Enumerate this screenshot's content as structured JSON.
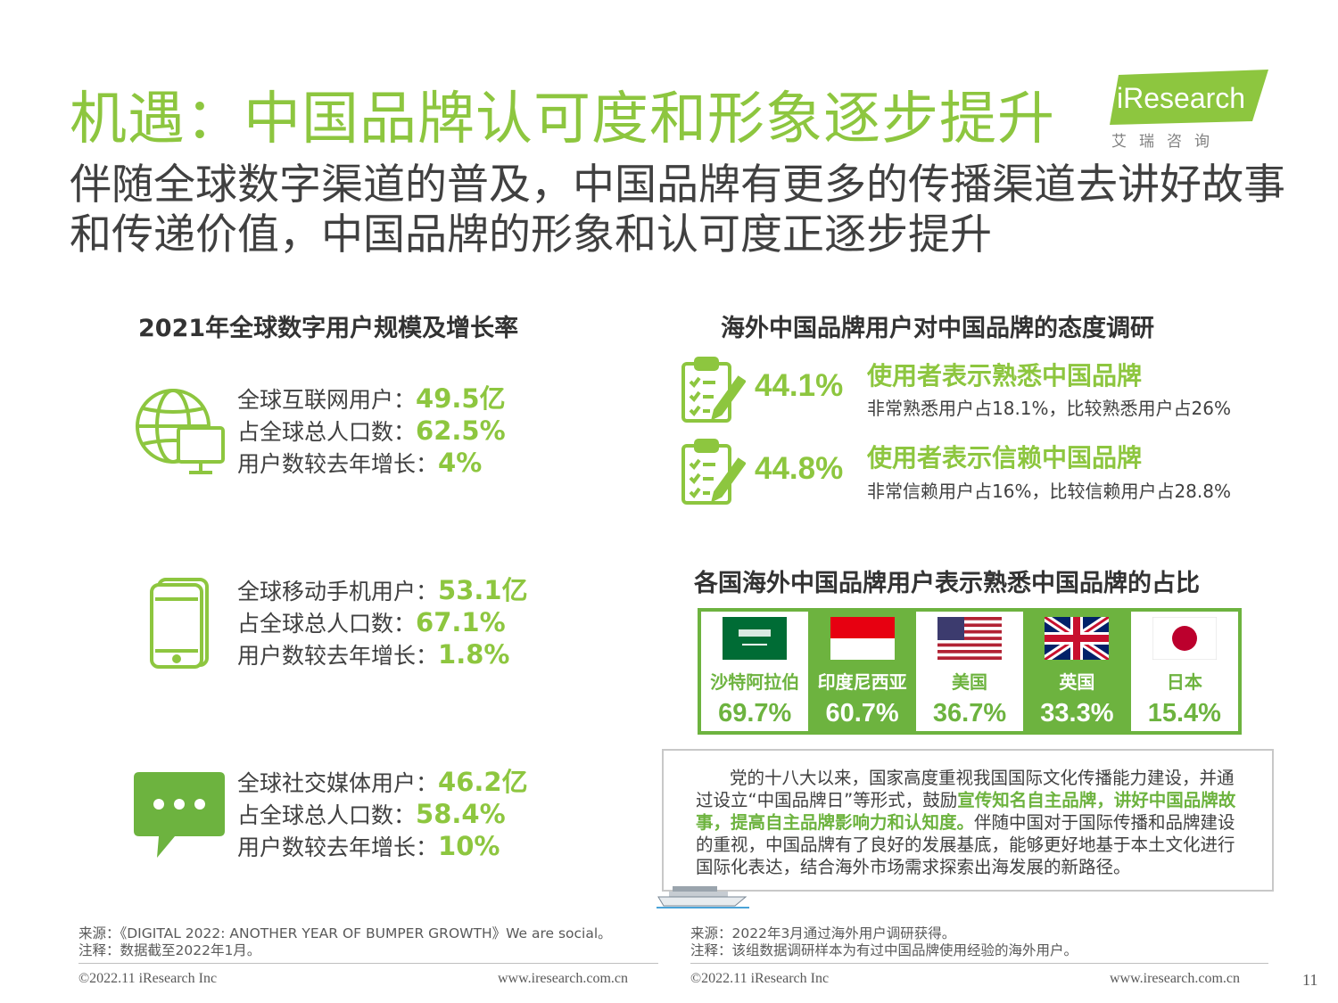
{
  "header": {
    "title": "机遇：中国品牌认可度和形象逐步提升",
    "subtitle": "伴随全球数字渠道的普及，中国品牌有更多的传播渠道去讲好故事和传递价值，中国品牌的形象和认可度正逐步提升",
    "logo_word": "iResearch",
    "logo_cn": "艾瑞咨询"
  },
  "left": {
    "title": "2021年全球数字用户规模及增长率",
    "groups": [
      {
        "icon": "globe-computer-icon",
        "lines": [
          {
            "label": "全球互联网用户：",
            "value": "49.5亿"
          },
          {
            "label": "占全球总人口数：",
            "value": "62.5%"
          },
          {
            "label": "用户数较去年增长：",
            "value": "4%"
          }
        ]
      },
      {
        "icon": "mobile-phone-icon",
        "lines": [
          {
            "label": "全球移动手机用户：",
            "value": "53.1亿"
          },
          {
            "label": "占全球总人口数：",
            "value": "67.1%"
          },
          {
            "label": "用户数较去年增长：",
            "value": "1.8%"
          }
        ]
      },
      {
        "icon": "chat-bubble-icon",
        "lines": [
          {
            "label": "全球社交媒体用户：",
            "value": "46.2亿"
          },
          {
            "label": "占全球总人口数：",
            "value": "58.4%"
          },
          {
            "label": "用户数较去年增长：",
            "value": "10%"
          }
        ]
      }
    ]
  },
  "right": {
    "title": "海外中国品牌用户对中国品牌的态度调研",
    "attitudes": [
      {
        "icon": "clipboard-checklist-icon",
        "pct": "44.1%",
        "heading": "使用者表示熟悉中国品牌",
        "sub": "非常熟悉用户占18.1%，比较熟悉用户占26%"
      },
      {
        "icon": "clipboard-checklist-icon",
        "pct": "44.8%",
        "heading": "使用者表示信赖中国品牌",
        "sub": "非常信赖用户占16%，比较信赖用户占28.8%"
      }
    ],
    "country_title": "各国海外中国品牌用户表示熟悉中国品牌的占比",
    "countries": [
      {
        "name": "沙特阿拉伯",
        "value": "69.7%",
        "flag": "saudi-arabia-flag"
      },
      {
        "name": "印度尼西亚",
        "value": "60.7%",
        "flag": "indonesia-flag"
      },
      {
        "name": "美国",
        "value": "36.7%",
        "flag": "usa-flag"
      },
      {
        "name": "英国",
        "value": "33.3%",
        "flag": "uk-flag"
      },
      {
        "name": "日本",
        "value": "15.4%",
        "flag": "japan-flag"
      }
    ],
    "note": {
      "p1": "党的十八大以来，国家高度重视我国国际文化传播能力建设，并通过设立“中国品牌日”等形式，鼓励",
      "highlight": "宣传知名自主品牌，讲好中国品牌故事，提高自主品牌影响力和认知度。",
      "p2": "伴随中国对于国际传播和品牌建设的重视，中国品牌有了良好的发展基底，能够更好地基于本土文化进行国际化表达，结合海外市场需求探索出海发展的新路径。"
    }
  },
  "sources": {
    "left_source": "来源：《DIGITAL 2022: ANOTHER YEAR OF BUMPER GROWTH》We are social。",
    "left_note": "注释：数据截至2022年1月。",
    "right_source": "来源：2022年3月通过海外用户调研获得。",
    "right_note": "注释：该组数据调研样本为有过中国品牌使用经验的海外用户。"
  },
  "footer": {
    "copyright": "©2022.11 iResearch Inc",
    "url": "www.iresearch.com.cn",
    "page": "11"
  },
  "colors": {
    "accent": "#8dc63f",
    "accent_dark": "#6db33f",
    "text": "#404040"
  }
}
